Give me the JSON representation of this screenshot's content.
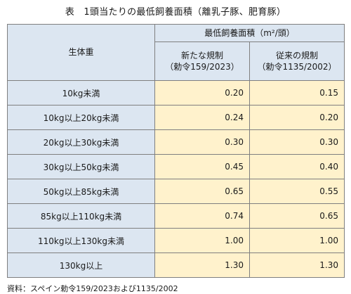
{
  "title": "表　1頭当たりの最低飼養面積（離乳子豚、肥育豚）",
  "header": {
    "weight_label": "生体重",
    "group_label": "最低飼養面積（m²/頭）",
    "new_rule": "新たな規制",
    "new_rule_ref": "（勅令159/2023）",
    "old_rule": "従来の規制",
    "old_rule_ref": "（勅令1135/2002）"
  },
  "rows": [
    {
      "label": "10kg未満",
      "new": "0.20",
      "old": "0.15"
    },
    {
      "label": "10kg以上20kg未満",
      "new": "0.24",
      "old": "0.20"
    },
    {
      "label": "20kg以上30kg未満",
      "new": "0.30",
      "old": "0.30"
    },
    {
      "label": "30kg以上50kg未満",
      "new": "0.45",
      "old": "0.40"
    },
    {
      "label": "50kg以上85kg未満",
      "new": "0.65",
      "old": "0.55"
    },
    {
      "label": "85kg以上110kg未満",
      "new": "0.74",
      "old": "0.65"
    },
    {
      "label": "110kg以上130kg未満",
      "new": "1.00",
      "old": "1.00"
    },
    {
      "label": "130kg以上",
      "new": "1.30",
      "old": "1.30"
    }
  ],
  "source": "資料：スペイン勅令159/2023および1135/2002",
  "colors": {
    "header_fill": "#dce6f1",
    "value_fill": "#fff2cc",
    "border": "#7f7f7f"
  }
}
